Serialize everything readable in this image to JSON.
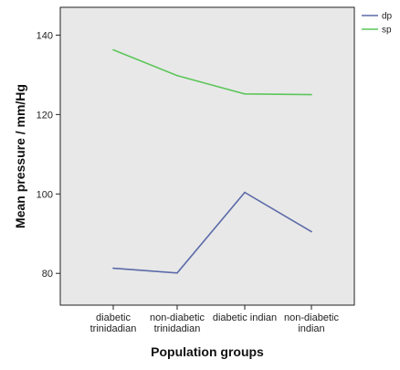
{
  "chart_data": {
    "type": "line",
    "title": "",
    "xlabel": "Population groups",
    "ylabel": "Mean pressure / mm/Hg",
    "categories": [
      [
        "diabetic",
        "trinidadian"
      ],
      [
        "non-diabetic",
        "trinidadian"
      ],
      [
        "diabetic indian"
      ],
      [
        "non-diabetic",
        "indian"
      ]
    ],
    "yticks": [
      80,
      100,
      120,
      140
    ],
    "ylim": [
      72,
      147
    ],
    "grid": false,
    "legend_position": "top-right",
    "series": [
      {
        "name": "dp",
        "color": "#5b6aa8",
        "values": [
          81.3,
          80.1,
          100.4,
          90.5
        ]
      },
      {
        "name": "sp",
        "color": "#5cc65a",
        "values": [
          136.3,
          129.8,
          125.2,
          125.0
        ]
      }
    ],
    "background": "#e8e8e8"
  }
}
